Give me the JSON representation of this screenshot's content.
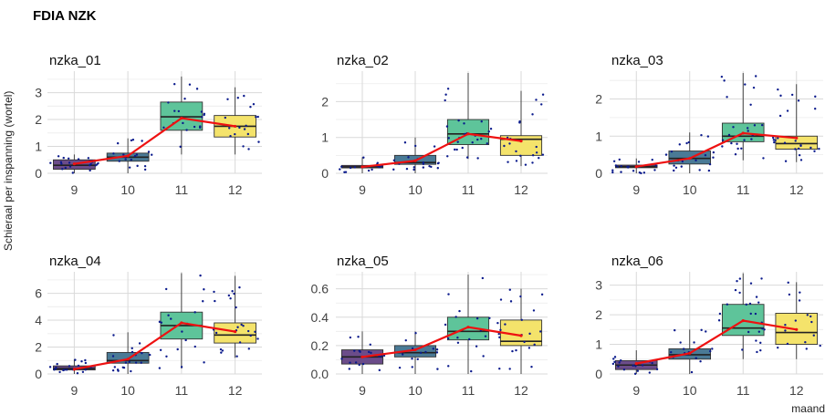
{
  "title": "FDIA NZK",
  "ylabel": "Schieraal per inspanning (wortel)",
  "xlabel": "maand",
  "box_colors": [
    "#6b4c8a",
    "#4a7a96",
    "#5ec49a",
    "#f4e36b"
  ],
  "point_color": "#0a1a8c",
  "line_color": "#ee1111",
  "chart_data": [
    {
      "type": "box",
      "title": "nzka_01",
      "categories": [
        "9",
        "10",
        "11",
        "12"
      ],
      "ylim": [
        0,
        3.8
      ],
      "yticks": [
        0,
        1,
        2,
        3
      ],
      "boxes": [
        {
          "min": 0.0,
          "q1": 0.15,
          "median": 0.3,
          "q3": 0.5,
          "max": 0.7
        },
        {
          "min": 0.0,
          "q1": 0.45,
          "median": 0.6,
          "q3": 0.75,
          "max": 1.3
        },
        {
          "min": 0.7,
          "q1": 1.6,
          "median": 2.1,
          "q3": 2.65,
          "max": 3.6
        },
        {
          "min": 0.7,
          "q1": 1.35,
          "median": 1.75,
          "q3": 2.15,
          "max": 3.2
        }
      ],
      "mean_line": [
        0.35,
        0.65,
        2.05,
        1.75
      ]
    },
    {
      "type": "box",
      "title": "nzka_02",
      "categories": [
        "9",
        "10",
        "11",
        "12"
      ],
      "ylim": [
        0,
        2.85
      ],
      "yticks": [
        0,
        1,
        2
      ],
      "boxes": [
        {
          "min": 0.0,
          "q1": 0.15,
          "median": 0.18,
          "q3": 0.22,
          "max": 0.45
        },
        {
          "min": 0.0,
          "q1": 0.25,
          "median": 0.3,
          "q3": 0.5,
          "max": 1.0
        },
        {
          "min": 0.4,
          "q1": 0.8,
          "median": 1.1,
          "q3": 1.5,
          "max": 2.8
        },
        {
          "min": 0.2,
          "q1": 0.5,
          "median": 0.95,
          "q3": 1.05,
          "max": 2.3
        }
      ],
      "mean_line": [
        0.18,
        0.35,
        1.1,
        0.9
      ]
    },
    {
      "type": "box",
      "title": "nzka_03",
      "categories": [
        "9",
        "10",
        "11",
        "12"
      ],
      "ylim": [
        0,
        2.75
      ],
      "yticks": [
        0,
        1,
        2
      ],
      "boxes": [
        {
          "min": 0.0,
          "q1": 0.15,
          "median": 0.18,
          "q3": 0.22,
          "max": 0.4
        },
        {
          "min": 0.0,
          "q1": 0.25,
          "median": 0.4,
          "q3": 0.6,
          "max": 1.1
        },
        {
          "min": 0.35,
          "q1": 0.85,
          "median": 1.0,
          "q3": 1.35,
          "max": 2.7
        },
        {
          "min": 0.3,
          "q1": 0.65,
          "median": 0.8,
          "q3": 1.0,
          "max": 2.4
        }
      ],
      "mean_line": [
        0.18,
        0.4,
        1.08,
        0.95
      ]
    },
    {
      "type": "box",
      "title": "nzka_04",
      "categories": [
        "9",
        "10",
        "11",
        "12"
      ],
      "ylim": [
        0,
        7.6
      ],
      "yticks": [
        0,
        2,
        4,
        6
      ],
      "boxes": [
        {
          "min": 0.0,
          "q1": 0.3,
          "median": 0.4,
          "q3": 0.6,
          "max": 1.1
        },
        {
          "min": 0.0,
          "q1": 0.8,
          "median": 1.0,
          "q3": 1.6,
          "max": 3.1
        },
        {
          "min": 0.4,
          "q1": 2.6,
          "median": 3.6,
          "q3": 4.6,
          "max": 7.5
        },
        {
          "min": 1.2,
          "q1": 2.3,
          "median": 2.9,
          "q3": 3.8,
          "max": 7.3
        }
      ],
      "mean_line": [
        0.35,
        1.1,
        3.8,
        3.15
      ]
    },
    {
      "type": "box",
      "title": "nzka_05",
      "categories": [
        "9",
        "10",
        "11",
        "12"
      ],
      "ylim": [
        0,
        0.72
      ],
      "yticks": [
        0,
        0.2,
        0.4,
        0.6
      ],
      "ytick_labels": [
        "0.0",
        "0.2",
        "0.4",
        "0.6"
      ],
      "boxes": [
        {
          "min": 0.0,
          "q1": 0.07,
          "median": 0.12,
          "q3": 0.17,
          "max": 0.3
        },
        {
          "min": 0.0,
          "q1": 0.12,
          "median": 0.15,
          "q3": 0.2,
          "max": 0.3
        },
        {
          "min": 0.0,
          "q1": 0.24,
          "median": 0.3,
          "q3": 0.4,
          "max": 0.7
        },
        {
          "min": 0.0,
          "q1": 0.2,
          "median": 0.23,
          "q3": 0.38,
          "max": 0.6
        }
      ],
      "mean_line": [
        0.12,
        0.17,
        0.33,
        0.27
      ]
    },
    {
      "type": "box",
      "title": "nzka_06",
      "categories": [
        "9",
        "10",
        "11",
        "12"
      ],
      "ylim": [
        0,
        3.45
      ],
      "yticks": [
        0,
        1,
        2,
        3
      ],
      "boxes": [
        {
          "min": 0.0,
          "q1": 0.15,
          "median": 0.3,
          "q3": 0.45,
          "max": 0.8
        },
        {
          "min": 0.0,
          "q1": 0.5,
          "median": 0.65,
          "q3": 0.85,
          "max": 1.5
        },
        {
          "min": 0.5,
          "q1": 1.3,
          "median": 1.55,
          "q3": 2.35,
          "max": 3.4
        },
        {
          "min": 0.5,
          "q1": 1.0,
          "median": 1.4,
          "q3": 2.05,
          "max": 3.1
        }
      ],
      "mean_line": [
        0.35,
        0.7,
        1.8,
        1.5
      ]
    }
  ]
}
